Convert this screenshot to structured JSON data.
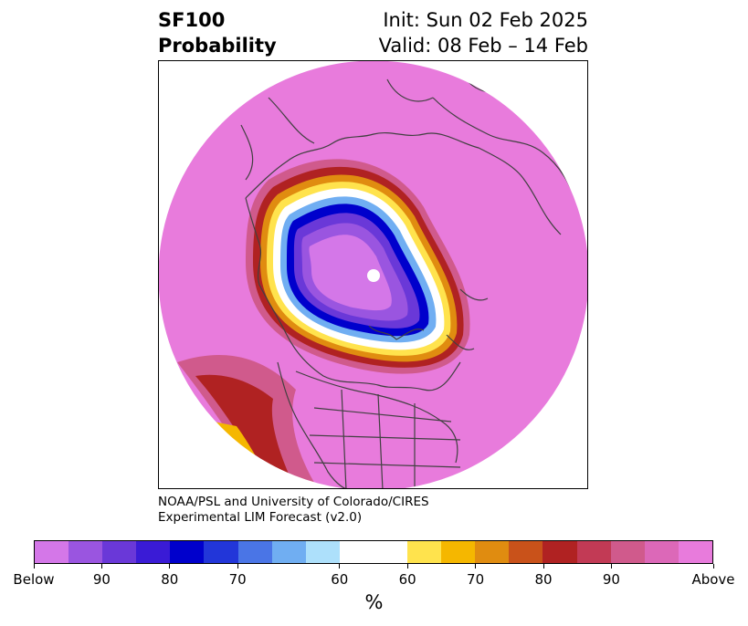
{
  "title": {
    "left_line1": "SF100",
    "left_line2": "Probability",
    "right_line1": "Init: Sun 02 Feb 2025",
    "right_line2": "Valid: 08 Feb – 14 Feb"
  },
  "credit": {
    "line1": "NOAA/PSL and University of Colorado/CIRES",
    "line2": "Experimental LIM Forecast (v2.0)"
  },
  "colorbar": {
    "unit": "%",
    "colors": [
      "#d477e8",
      "#9a55e0",
      "#6a38d8",
      "#3a1bd6",
      "#0000cc",
      "#2236d9",
      "#4a75e6",
      "#70aef2",
      "#ade0fb",
      "#ffffff",
      "#ffe34d",
      "#f5b700",
      "#e08c10",
      "#c9521a",
      "#b02222",
      "#c23a55",
      "#d05a8c",
      "#dc68b8",
      "#e87bdc"
    ],
    "tick_labels": [
      "Below",
      "90",
      "80",
      "70",
      "60",
      "60",
      "70",
      "80",
      "90",
      "Above"
    ]
  },
  "map": {
    "field_colors": {
      "below_core": "#d477e8",
      "below_90": "#9a55e0",
      "below_80": "#6a38d8",
      "below_70": "#0000cc",
      "below_60": "#70aef2",
      "neutral": "#ffffff",
      "above_60": "#ffe34d",
      "above_70": "#e08c10",
      "above_80": "#b02222",
      "above_90": "#d05a8c",
      "above_max": "#e87bdc"
    },
    "coastline_color": "#404040"
  }
}
